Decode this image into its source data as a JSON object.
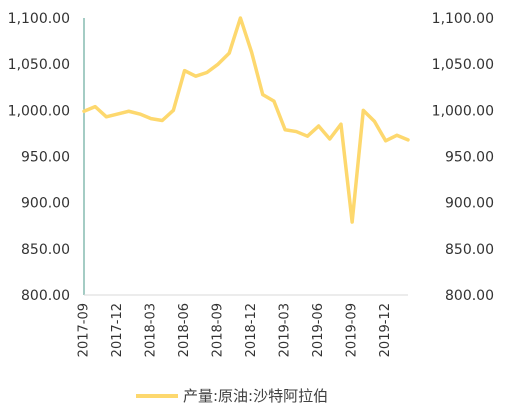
{
  "chart_data": {
    "type": "line",
    "title": "",
    "xlabel": "",
    "ylabel": "",
    "ylim": [
      800,
      1100
    ],
    "y_ticks": [
      "800.00",
      "850.00",
      "900.00",
      "950.00",
      "1,000.00",
      "1,050.00",
      "1,100.00"
    ],
    "secondary_y_ticks": [
      "800.00",
      "850.00",
      "900.00",
      "950.00",
      "1,000.00",
      "1,050.00",
      "1,100.00"
    ],
    "x_tick_labels": [
      "2017-09",
      "2017-12",
      "2018-03",
      "2018-06",
      "2018-09",
      "2018-12",
      "2019-03",
      "2019-06",
      "2019-09",
      "2019-12"
    ],
    "x": [
      "2017-09",
      "2017-10",
      "2017-11",
      "2017-12",
      "2018-01",
      "2018-02",
      "2018-03",
      "2018-04",
      "2018-05",
      "2018-06",
      "2018-07",
      "2018-08",
      "2018-09",
      "2018-10",
      "2018-11",
      "2018-12",
      "2019-01",
      "2019-02",
      "2019-03",
      "2019-04",
      "2019-05",
      "2019-06",
      "2019-07",
      "2019-08",
      "2019-09",
      "2019-10",
      "2019-11",
      "2019-12",
      "2020-01",
      "2020-02"
    ],
    "series": [
      {
        "name": "产量:原油:沙特阿拉伯",
        "color": "#FDD86E",
        "values": [
          999,
          1004,
          993,
          996,
          999,
          996,
          991,
          989,
          1000,
          1043,
          1037,
          1041,
          1050,
          1062,
          1100,
          1063,
          1017,
          1010,
          979,
          977,
          972,
          983,
          969,
          985,
          879,
          1000,
          988,
          967,
          973,
          968
        ]
      }
    ],
    "grid": false,
    "legend_position": "bottom-center"
  }
}
